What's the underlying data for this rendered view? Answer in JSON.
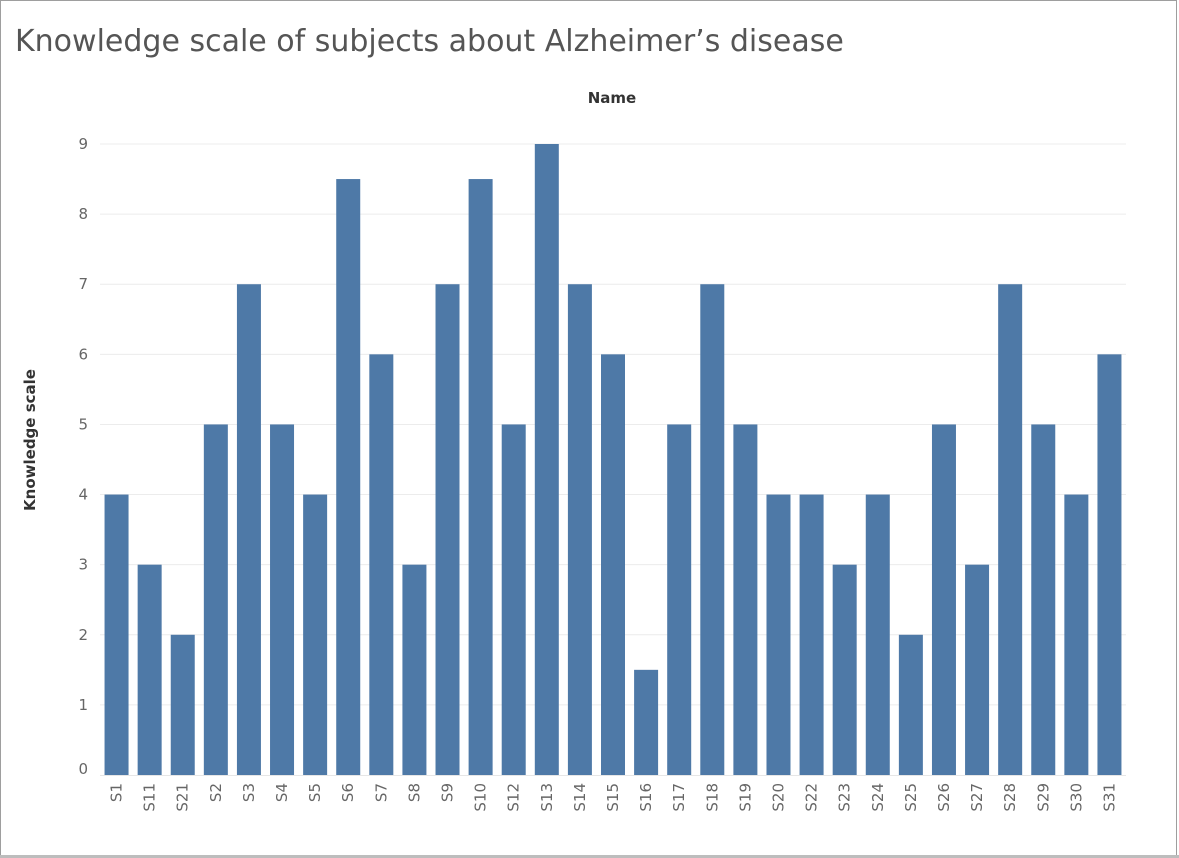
{
  "chart_data": {
    "type": "bar",
    "title": "Knowledge scale of subjects about Alzheimer’s disease",
    "xlabel": "Name",
    "ylabel": "Knowledge scale",
    "categories": [
      "S1",
      "S11",
      "S21",
      "S2",
      "S3",
      "S4",
      "S5",
      "S6",
      "S7",
      "S8",
      "S9",
      "S10",
      "S12",
      "S13",
      "S14",
      "S15",
      "S16",
      "S17",
      "S18",
      "S19",
      "S20",
      "S22",
      "S23",
      "S24",
      "S25",
      "S26",
      "S27",
      "S28",
      "S29",
      "S30",
      "S31"
    ],
    "values": [
      4,
      3,
      2,
      5,
      7,
      5,
      4,
      8.5,
      6,
      3,
      7,
      8.5,
      5,
      9,
      7,
      6,
      1.5,
      5,
      7,
      5,
      4,
      4,
      3,
      4,
      2,
      5,
      3,
      7,
      5,
      4,
      6
    ],
    "ylim": [
      0,
      9
    ],
    "yticks": [
      "0",
      "1",
      "2",
      "3",
      "4",
      "5",
      "6",
      "7",
      "8",
      "9"
    ],
    "grid": true,
    "colors": {
      "bar": "#4e79a7",
      "grid": "#ececec",
      "tick_text": "#666666"
    }
  }
}
